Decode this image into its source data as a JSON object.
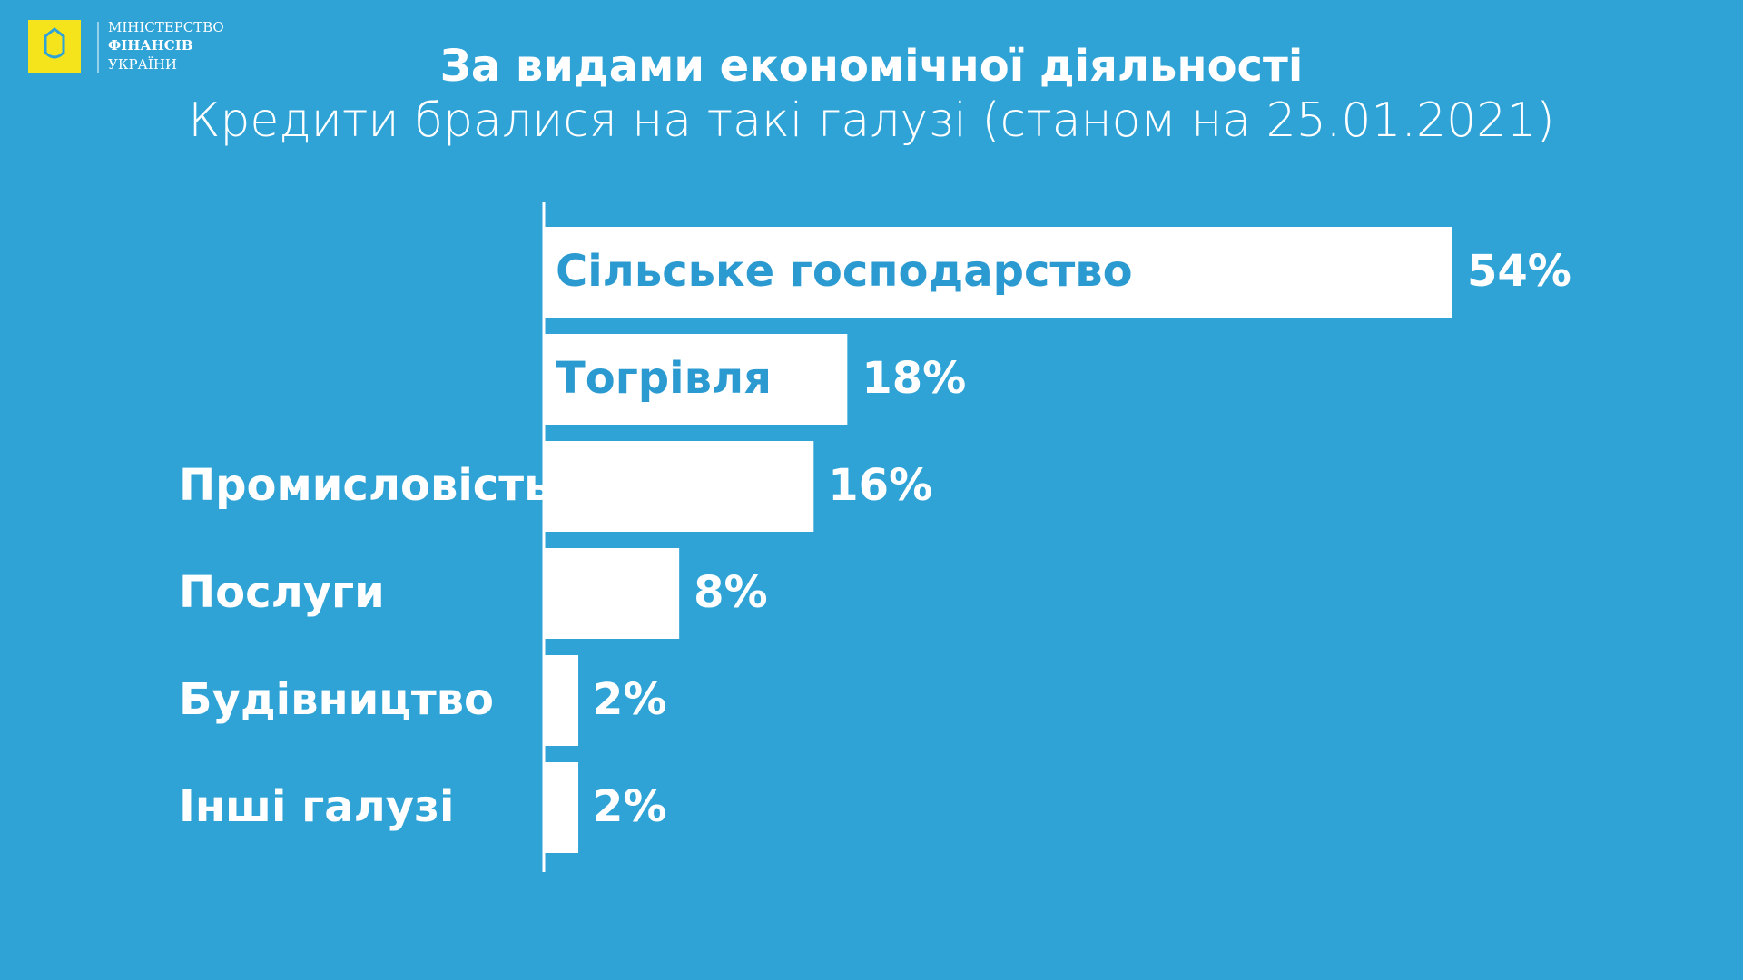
{
  "logo": {
    "lines": [
      "МІНІСТЕРСТВО",
      "ФІНАНСІВ",
      "УКРАЇНИ"
    ]
  },
  "chart_data": {
    "type": "hbar",
    "title": "За видами економічної діяльності",
    "subtitle": "Кредити бралися на такі галузі (станом на 25.01.2021)",
    "categories": [
      "Сільське господарство",
      "Тогрівля",
      "Промисловість",
      "Послуги",
      "Будівництво",
      "Інші галузі"
    ],
    "values": [
      54,
      18,
      16,
      8,
      2,
      2
    ],
    "value_labels": [
      "54%",
      "18%",
      "16%",
      "8%",
      "2%",
      "2%"
    ],
    "color": "#ffffff"
  }
}
